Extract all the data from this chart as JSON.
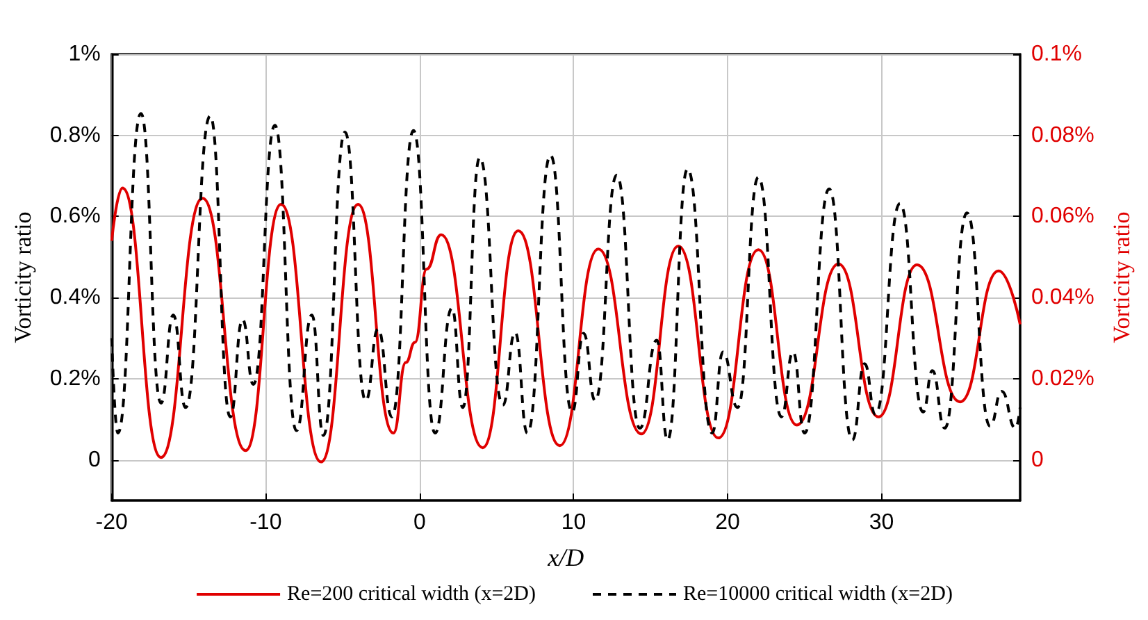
{
  "chart_data": {
    "type": "line",
    "xlabel": "x/D",
    "ylabel": "Vorticity ratio",
    "y2label": "Vorticity ratio",
    "xlim": [
      -20,
      39
    ],
    "xticks": [
      -20,
      -10,
      0,
      10,
      20,
      30
    ],
    "ylim": [
      -0.1,
      1
    ],
    "yticks": [
      0,
      {
        "value": 0.2,
        "label": "0.2%"
      },
      {
        "value": 0.4,
        "label": "0.4%"
      },
      {
        "value": 0.6,
        "label": "0.6%"
      },
      {
        "value": 0.8,
        "label": "0.8%"
      },
      {
        "value": 1,
        "label": "1%"
      }
    ],
    "y2lim": [
      -0.01,
      0.1
    ],
    "y2ticks": [
      0,
      {
        "value": 0.02,
        "label": "0.02%"
      },
      {
        "value": 0.04,
        "label": "0.04%"
      },
      {
        "value": 0.06,
        "label": "0.06%"
      },
      {
        "value": 0.08,
        "label": "0.08%"
      },
      {
        "value": 0.1,
        "label": "0.1%"
      }
    ],
    "grid": true,
    "legend": "bottom",
    "marker": "none",
    "series": [
      {
        "name": "Re=200 critical width (x=2D)",
        "color": "#e00000",
        "axis": "y2",
        "line_style": "solid",
        "x": [
          -20,
          -19.3,
          -16.8,
          -14.1,
          -11.3,
          -9.0,
          -6.4,
          -4.0,
          -1.7,
          -0.9,
          -0.3,
          0.45,
          1.4,
          4.1,
          6.4,
          9.1,
          11.6,
          14.4,
          16.8,
          19.4,
          22.0,
          24.5,
          27.2,
          29.8,
          32.3,
          35.1,
          37.6,
          39
        ],
        "values": [
          0.054,
          0.067,
          0.0006,
          0.0645,
          0.0023,
          0.063,
          -0.0005,
          0.063,
          0.0066,
          0.024,
          0.029,
          0.047,
          0.0555,
          0.003,
          0.0565,
          0.0035,
          0.052,
          0.0064,
          0.0527,
          0.0054,
          0.0518,
          0.0086,
          0.0483,
          0.0106,
          0.0481,
          0.0143,
          0.0466,
          0.0334
        ]
      },
      {
        "name": "Re=10000 critical width (x=2D)",
        "color": "#000000",
        "line_style": "dashed",
        "x": [
          -20,
          -19.6,
          -18.1,
          -16.8,
          -16.0,
          -15.2,
          -13.6,
          -12.3,
          -11.5,
          -10.8,
          -9.4,
          -8.0,
          -7.0,
          -6.25,
          -4.85,
          -3.5,
          -2.7,
          -1.8,
          -0.4,
          1.0,
          2.1,
          2.8,
          3.9,
          5.4,
          6.2,
          7.0,
          8.5,
          9.9,
          10.65,
          11.4,
          12.8,
          14.3,
          15.4,
          16.1,
          17.4,
          19.0,
          19.7,
          20.65,
          22.0,
          23.5,
          24.25,
          25.0,
          26.6,
          28.1,
          28.9,
          29.6,
          31.2,
          32.7,
          33.3,
          34.1,
          35.55,
          37.05,
          37.8,
          38.7,
          39
        ],
        "values": [
          0.3,
          0.066,
          0.854,
          0.14,
          0.357,
          0.129,
          0.848,
          0.106,
          0.346,
          0.186,
          0.825,
          0.072,
          0.357,
          0.06,
          0.808,
          0.146,
          0.323,
          0.106,
          0.812,
          0.066,
          0.374,
          0.129,
          0.745,
          0.135,
          0.314,
          0.066,
          0.751,
          0.118,
          0.312,
          0.146,
          0.702,
          0.078,
          0.295,
          0.049,
          0.717,
          0.066,
          0.266,
          0.129,
          0.697,
          0.106,
          0.266,
          0.066,
          0.668,
          0.049,
          0.237,
          0.112,
          0.632,
          0.118,
          0.22,
          0.078,
          0.609,
          0.083,
          0.169,
          0.078,
          0.129
        ]
      }
    ]
  }
}
